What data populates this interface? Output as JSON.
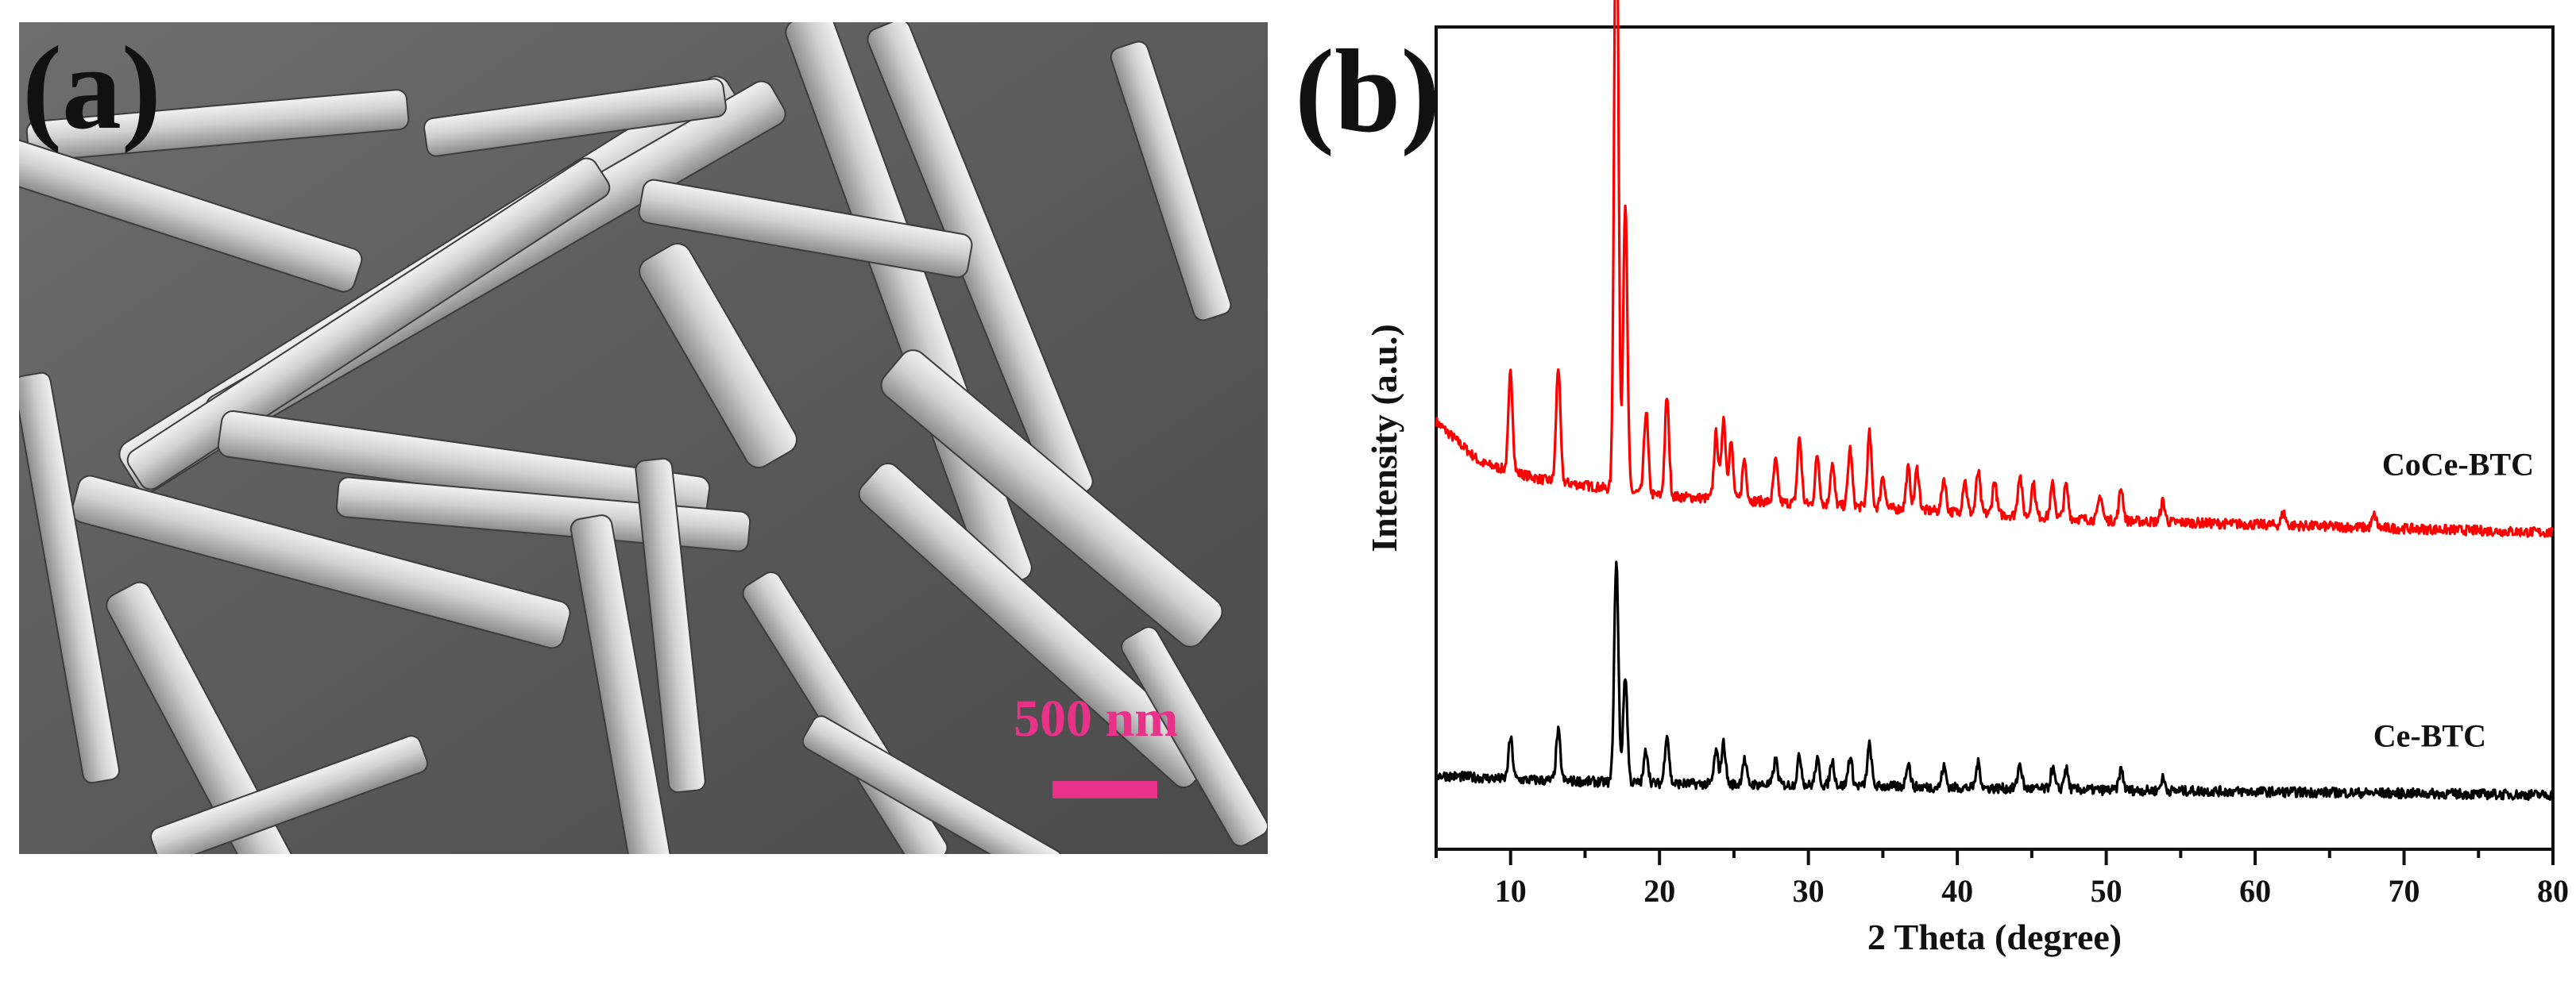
{
  "panels": {
    "a": {
      "label": "(a)",
      "scale_bar": {
        "text": "500 nm",
        "color": "#e8328a"
      }
    },
    "b": {
      "label": "(b)"
    }
  },
  "chart_data": {
    "type": "line",
    "title": "",
    "xlabel": "2 Theta (degree)",
    "ylabel": "Intensity (a.u.)",
    "xlim": [
      5,
      80
    ],
    "xticks": [
      10,
      20,
      30,
      40,
      50,
      60,
      70,
      80
    ],
    "yticks": [],
    "grid": false,
    "legend": "labels next to curves on right",
    "series": [
      {
        "name": "CoCe-BTC",
        "color": "#ff0000",
        "baseline": [
          [
            5,
            0.52
          ],
          [
            8,
            0.47
          ],
          [
            12,
            0.45
          ],
          [
            20,
            0.43
          ],
          [
            30,
            0.42
          ],
          [
            40,
            0.41
          ],
          [
            50,
            0.4
          ],
          [
            60,
            0.395
          ],
          [
            70,
            0.39
          ],
          [
            80,
            0.385
          ]
        ],
        "peaks": [
          [
            10.0,
            0.12
          ],
          [
            13.2,
            0.14
          ],
          [
            17.1,
            0.8
          ],
          [
            17.7,
            0.35
          ],
          [
            19.1,
            0.1
          ],
          [
            20.5,
            0.12
          ],
          [
            23.8,
            0.08
          ],
          [
            24.3,
            0.1
          ],
          [
            24.8,
            0.07
          ],
          [
            25.7,
            0.05
          ],
          [
            27.8,
            0.05
          ],
          [
            29.4,
            0.08
          ],
          [
            30.6,
            0.06
          ],
          [
            31.6,
            0.05
          ],
          [
            32.8,
            0.07
          ],
          [
            34.1,
            0.09
          ],
          [
            35.0,
            0.04
          ],
          [
            36.7,
            0.05
          ],
          [
            37.3,
            0.05
          ],
          [
            39.1,
            0.04
          ],
          [
            40.5,
            0.04
          ],
          [
            41.4,
            0.05
          ],
          [
            42.5,
            0.04
          ],
          [
            44.2,
            0.05
          ],
          [
            45.1,
            0.04
          ],
          [
            46.4,
            0.04
          ],
          [
            47.3,
            0.04
          ],
          [
            49.6,
            0.03
          ],
          [
            51.0,
            0.04
          ],
          [
            53.8,
            0.025
          ],
          [
            61.9,
            0.015
          ],
          [
            68.0,
            0.015
          ]
        ]
      },
      {
        "name": "Ce-BTC",
        "color": "#000000",
        "baseline": [
          [
            5,
            0.09
          ],
          [
            10,
            0.085
          ],
          [
            20,
            0.08
          ],
          [
            30,
            0.078
          ],
          [
            40,
            0.075
          ],
          [
            50,
            0.072
          ],
          [
            60,
            0.07
          ],
          [
            70,
            0.068
          ],
          [
            80,
            0.066
          ]
        ],
        "peaks": [
          [
            10.0,
            0.05
          ],
          [
            13.2,
            0.06
          ],
          [
            17.1,
            0.27
          ],
          [
            17.7,
            0.13
          ],
          [
            19.1,
            0.04
          ],
          [
            20.5,
            0.06
          ],
          [
            23.8,
            0.04
          ],
          [
            24.3,
            0.05
          ],
          [
            25.7,
            0.03
          ],
          [
            27.8,
            0.03
          ],
          [
            29.4,
            0.035
          ],
          [
            30.6,
            0.03
          ],
          [
            31.6,
            0.03
          ],
          [
            32.8,
            0.035
          ],
          [
            34.1,
            0.05
          ],
          [
            36.7,
            0.03
          ],
          [
            39.1,
            0.025
          ],
          [
            41.4,
            0.03
          ],
          [
            44.2,
            0.03
          ],
          [
            46.4,
            0.025
          ],
          [
            47.3,
            0.025
          ],
          [
            51.0,
            0.025
          ],
          [
            53.8,
            0.015
          ]
        ]
      }
    ]
  }
}
